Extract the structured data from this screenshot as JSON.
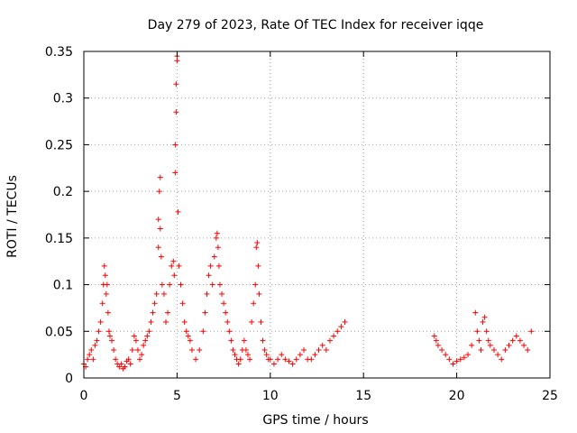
{
  "chart_data": {
    "type": "scatter",
    "title": "Day 279 of 2023, Rate Of TEC Index for receiver iqqe",
    "xlabel": "GPS time / hours",
    "ylabel": "ROTI / TECUs",
    "xlim": [
      0,
      25
    ],
    "ylim": [
      0,
      0.35
    ],
    "xticks": [
      0,
      5,
      10,
      15,
      20,
      25
    ],
    "xtick_labels": [
      "0",
      "5",
      "10",
      "15",
      "20",
      "25"
    ],
    "yticks": [
      0,
      0.05,
      0.1,
      0.15,
      0.2,
      0.25,
      0.3,
      0.35
    ],
    "ytick_labels": [
      "0",
      "0.05",
      "0.1",
      "0.15",
      "0.2",
      "0.25",
      "0.3",
      "0.35"
    ],
    "grid": true,
    "marker": "+",
    "series": [
      {
        "name": "ROTI",
        "color": "#ff0000",
        "x": [
          0.0,
          0.1,
          0.2,
          0.3,
          0.4,
          0.5,
          0.6,
          0.7,
          0.8,
          0.9,
          1.0,
          1.05,
          1.1,
          1.15,
          1.2,
          1.25,
          1.3,
          1.35,
          1.4,
          1.5,
          1.6,
          1.7,
          1.8,
          1.9,
          2.0,
          2.1,
          2.2,
          2.3,
          2.4,
          2.5,
          2.6,
          2.7,
          2.8,
          2.9,
          3.0,
          3.1,
          3.2,
          3.3,
          3.4,
          3.5,
          3.6,
          3.7,
          3.8,
          3.9,
          4.0,
          4.0,
          4.05,
          4.1,
          4.1,
          4.15,
          4.2,
          4.3,
          4.4,
          4.5,
          4.6,
          4.7,
          4.8,
          4.85,
          4.9,
          4.9,
          4.95,
          4.95,
          5.0,
          5.0,
          5.05,
          5.1,
          5.2,
          5.3,
          5.4,
          5.5,
          5.6,
          5.7,
          5.8,
          6.0,
          6.2,
          6.4,
          6.5,
          6.6,
          6.7,
          6.8,
          6.9,
          7.0,
          7.1,
          7.15,
          7.2,
          7.25,
          7.3,
          7.4,
          7.5,
          7.6,
          7.7,
          7.8,
          7.9,
          8.0,
          8.1,
          8.2,
          8.3,
          8.4,
          8.5,
          8.6,
          8.7,
          8.8,
          8.9,
          9.0,
          9.1,
          9.2,
          9.25,
          9.3,
          9.35,
          9.4,
          9.5,
          9.6,
          9.7,
          9.8,
          9.9,
          10.0,
          10.2,
          10.4,
          10.6,
          10.8,
          11.0,
          11.2,
          11.4,
          11.6,
          11.8,
          12.0,
          12.2,
          12.4,
          12.6,
          12.8,
          13.0,
          13.2,
          13.4,
          13.6,
          13.8,
          14.0,
          18.8,
          18.9,
          19.0,
          19.2,
          19.4,
          19.6,
          19.8,
          20.0,
          20.2,
          20.4,
          20.6,
          20.8,
          21.0,
          21.1,
          21.2,
          21.3,
          21.4,
          21.5,
          21.6,
          21.7,
          21.8,
          22.0,
          22.2,
          22.4,
          22.6,
          22.8,
          23.0,
          23.2,
          23.4,
          23.6,
          23.8,
          24.0
        ],
        "y": [
          0.015,
          0.012,
          0.02,
          0.025,
          0.03,
          0.02,
          0.035,
          0.04,
          0.05,
          0.06,
          0.08,
          0.1,
          0.12,
          0.11,
          0.09,
          0.1,
          0.07,
          0.05,
          0.045,
          0.04,
          0.03,
          0.02,
          0.015,
          0.012,
          0.015,
          0.01,
          0.012,
          0.018,
          0.02,
          0.015,
          0.03,
          0.045,
          0.04,
          0.03,
          0.02,
          0.025,
          0.035,
          0.04,
          0.045,
          0.05,
          0.06,
          0.07,
          0.08,
          0.09,
          0.14,
          0.17,
          0.2,
          0.215,
          0.16,
          0.13,
          0.1,
          0.09,
          0.06,
          0.07,
          0.1,
          0.12,
          0.125,
          0.11,
          0.22,
          0.25,
          0.285,
          0.315,
          0.345,
          0.34,
          0.178,
          0.12,
          0.1,
          0.08,
          0.06,
          0.05,
          0.045,
          0.04,
          0.03,
          0.02,
          0.03,
          0.05,
          0.07,
          0.09,
          0.11,
          0.12,
          0.1,
          0.13,
          0.15,
          0.155,
          0.14,
          0.12,
          0.1,
          0.09,
          0.08,
          0.07,
          0.06,
          0.05,
          0.04,
          0.03,
          0.025,
          0.02,
          0.015,
          0.02,
          0.03,
          0.04,
          0.03,
          0.025,
          0.02,
          0.06,
          0.08,
          0.1,
          0.14,
          0.145,
          0.12,
          0.09,
          0.06,
          0.04,
          0.03,
          0.025,
          0.02,
          0.02,
          0.015,
          0.02,
          0.025,
          0.02,
          0.018,
          0.015,
          0.02,
          0.025,
          0.03,
          0.02,
          0.02,
          0.025,
          0.03,
          0.035,
          0.03,
          0.04,
          0.045,
          0.05,
          0.055,
          0.06,
          0.045,
          0.04,
          0.035,
          0.03,
          0.025,
          0.02,
          0.015,
          0.018,
          0.02,
          0.022,
          0.025,
          0.035,
          0.07,
          0.05,
          0.04,
          0.03,
          0.06,
          0.065,
          0.05,
          0.04,
          0.035,
          0.03,
          0.025,
          0.02,
          0.03,
          0.035,
          0.04,
          0.045,
          0.04,
          0.035,
          0.03,
          0.05
        ]
      }
    ]
  }
}
